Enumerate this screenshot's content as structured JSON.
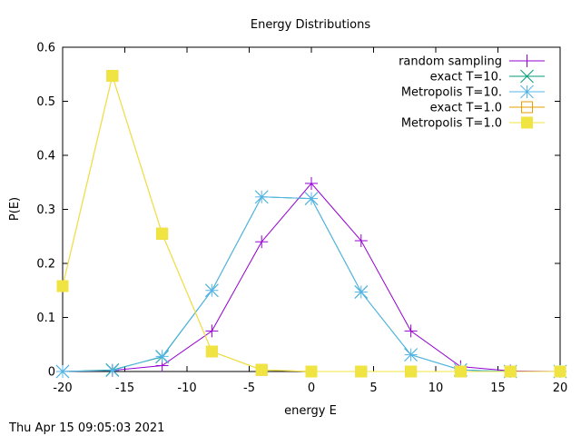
{
  "chart_data": {
    "type": "line",
    "title": "Energy Distributions",
    "xlabel": "energy E",
    "ylabel": "P(E)",
    "xlim": [
      -20,
      20
    ],
    "ylim": [
      0,
      0.6
    ],
    "x_ticks": [
      -20,
      -15,
      -10,
      -5,
      0,
      5,
      10,
      15,
      20
    ],
    "y_ticks": [
      0,
      0.1,
      0.2,
      0.3,
      0.4,
      0.5,
      0.6
    ],
    "grid": false,
    "legend_position": "top-right",
    "series": [
      {
        "name": "random sampling",
        "color": "#9400d3",
        "marker": "plus",
        "points": [
          [
            -20,
            0
          ],
          [
            -16,
            0.002
          ],
          [
            -12,
            0.011
          ],
          [
            -8,
            0.075
          ],
          [
            -4,
            0.24
          ],
          [
            0,
            0.348
          ],
          [
            4,
            0.242
          ],
          [
            8,
            0.075
          ],
          [
            12,
            0.009
          ],
          [
            16,
            0.001
          ],
          [
            20,
            0
          ]
        ]
      },
      {
        "name": "exact T=10.",
        "color": "#009e73",
        "marker": "cross",
        "points": [
          [
            -20,
            0
          ],
          [
            -16,
            0.003
          ],
          [
            -12,
            0.027
          ],
          [
            -8,
            0.15
          ],
          [
            -4,
            0.323
          ],
          [
            0,
            0.32
          ],
          [
            4,
            0.147
          ],
          [
            8,
            0.031
          ],
          [
            12,
            0.003
          ],
          [
            16,
            0
          ],
          [
            20,
            0
          ]
        ]
      },
      {
        "name": "Metropolis T=10.",
        "color": "#56b4e9",
        "marker": "star",
        "points": [
          [
            -20,
            0
          ],
          [
            -16,
            0.002
          ],
          [
            -12,
            0.028
          ],
          [
            -8,
            0.15
          ],
          [
            -4,
            0.323
          ],
          [
            0,
            0.32
          ],
          [
            4,
            0.147
          ],
          [
            8,
            0.031
          ],
          [
            12,
            0.003
          ],
          [
            16,
            0
          ],
          [
            20,
            0
          ]
        ]
      },
      {
        "name": "exact T=1.0",
        "color": "#e69f00",
        "marker": "open-square",
        "points": [
          [
            -20,
            0.158
          ],
          [
            -16,
            0.547
          ],
          [
            -12,
            0.255
          ],
          [
            -8,
            0.037
          ],
          [
            -4,
            0.003
          ],
          [
            0,
            0
          ],
          [
            4,
            0
          ],
          [
            8,
            0
          ],
          [
            12,
            0
          ],
          [
            16,
            0
          ],
          [
            20,
            0
          ]
        ]
      },
      {
        "name": "Metropolis T=1.0",
        "color": "#f0e442",
        "marker": "filled-square",
        "points": [
          [
            -20,
            0.158
          ],
          [
            -16,
            0.547
          ],
          [
            -12,
            0.255
          ],
          [
            -8,
            0.037
          ],
          [
            -4,
            0.003
          ],
          [
            0,
            0
          ],
          [
            4,
            0
          ],
          [
            8,
            0
          ],
          [
            12,
            0
          ],
          [
            16,
            0
          ],
          [
            20,
            0
          ]
        ]
      }
    ]
  },
  "timestamp": "Thu Apr 15 09:05:03 2021"
}
